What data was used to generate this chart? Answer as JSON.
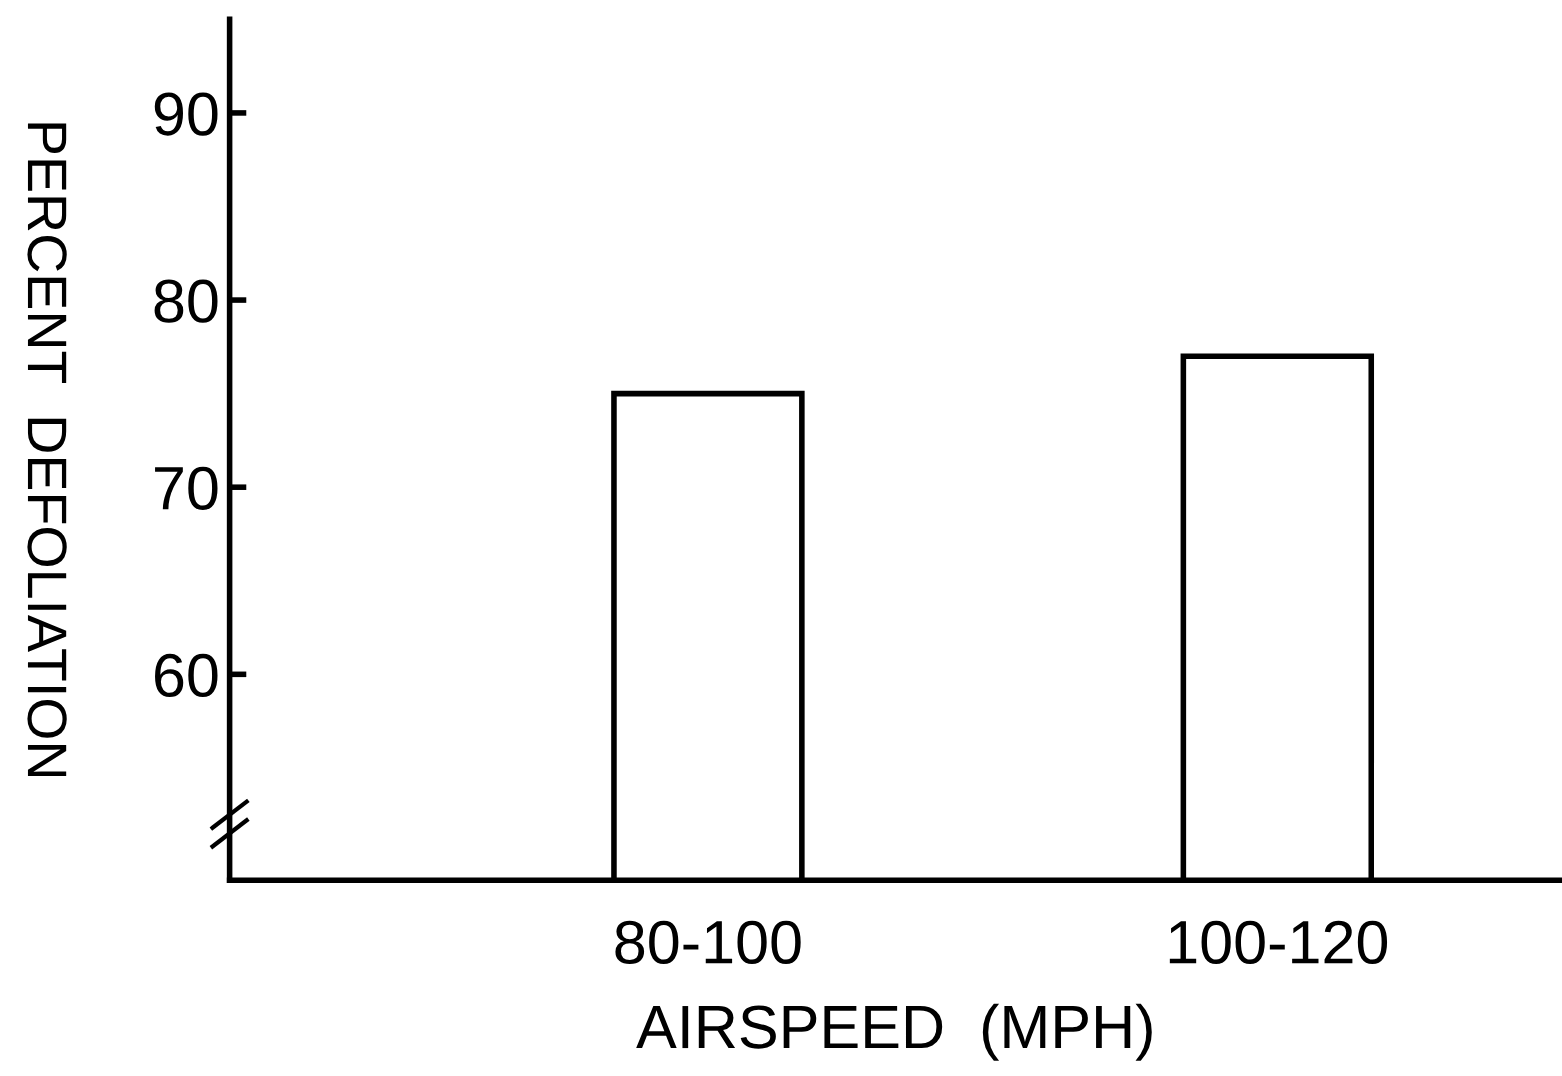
{
  "chart_data": {
    "type": "bar",
    "xlabel": "AIRSPEED  (MPH)",
    "ylabel": "PERCENT  DEFOLIATION",
    "categories": [
      "80-100",
      "100-120"
    ],
    "values": [
      75,
      77
    ],
    "color": "#ffffff",
    "ylim": [
      49,
      95
    ],
    "yticks": [
      60,
      70,
      80,
      90
    ],
    "grid": false,
    "legend": false
  }
}
